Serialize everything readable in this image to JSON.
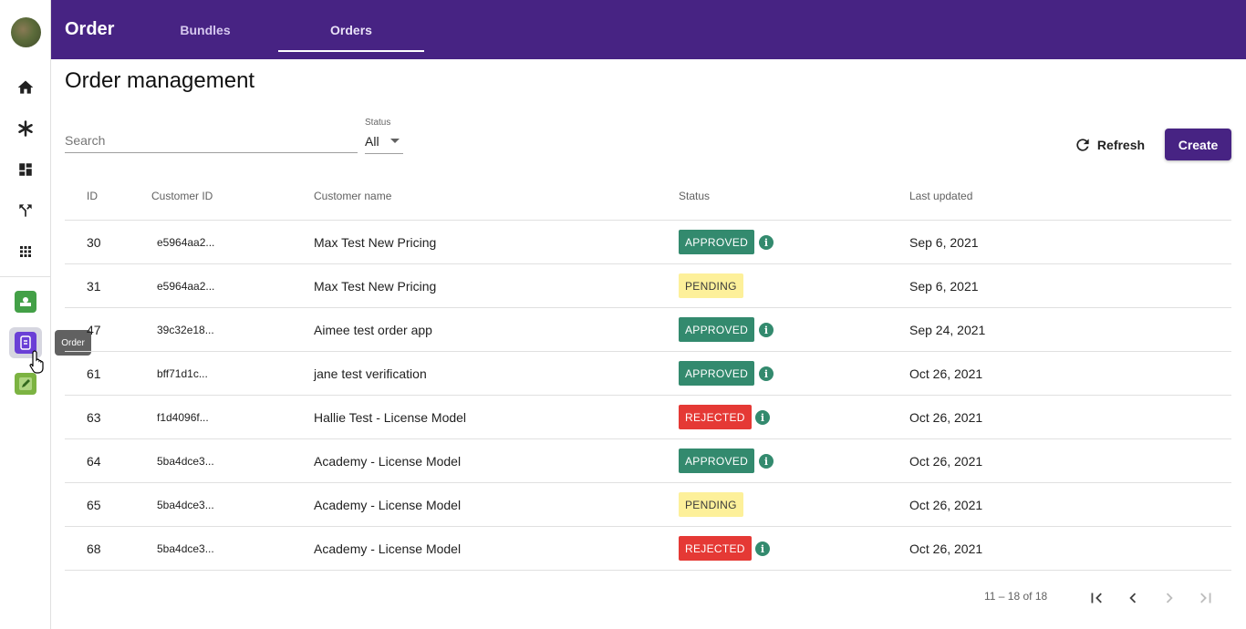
{
  "app": {
    "title": "Order",
    "tabs": [
      {
        "label": "Bundles",
        "active": false
      },
      {
        "label": "Orders",
        "active": true
      }
    ]
  },
  "sidebar": {
    "nav_icons": [
      "home-icon",
      "asterisk-icon",
      "dashboard-icon",
      "fork-icon",
      "apps-grid-icon"
    ],
    "apps": [
      {
        "name": "green-app-icon",
        "color": "#43a047"
      },
      {
        "name": "order-app-icon",
        "color": "#6a3fd6",
        "active": true
      },
      {
        "name": "edit-app-icon",
        "color": "#7cb342"
      }
    ],
    "tooltip": "Order"
  },
  "page": {
    "title": "Order management",
    "search_placeholder": "Search",
    "status_label": "Status",
    "status_value": "All",
    "refresh_label": "Refresh",
    "create_label": "Create"
  },
  "table": {
    "headers": [
      "ID",
      "Customer ID",
      "Customer name",
      "Status",
      "Last updated"
    ],
    "rows": [
      {
        "id": "30",
        "customer_id": "e5964aa2...",
        "name": "Max Test New Pricing",
        "status": "APPROVED",
        "info": true,
        "updated": "Sep 6, 2021"
      },
      {
        "id": "31",
        "customer_id": "e5964aa2...",
        "name": "Max Test New Pricing",
        "status": "PENDING",
        "info": false,
        "updated": "Sep 6, 2021"
      },
      {
        "id": "47",
        "customer_id": "39c32e18...",
        "name": "Aimee test order app",
        "status": "APPROVED",
        "info": true,
        "updated": "Sep 24, 2021"
      },
      {
        "id": "61",
        "customer_id": "bff71d1c...",
        "name": "jane test verification",
        "status": "APPROVED",
        "info": true,
        "updated": "Oct 26, 2021"
      },
      {
        "id": "63",
        "customer_id": "f1d4096f...",
        "name": "Hallie Test - License Model",
        "status": "REJECTED",
        "info": true,
        "updated": "Oct 26, 2021"
      },
      {
        "id": "64",
        "customer_id": "5ba4dce3...",
        "name": "Academy - License Model",
        "status": "APPROVED",
        "info": true,
        "updated": "Oct 26, 2021"
      },
      {
        "id": "65",
        "customer_id": "5ba4dce3...",
        "name": "Academy - License Model",
        "status": "PENDING",
        "info": false,
        "updated": "Oct 26, 2021"
      },
      {
        "id": "68",
        "customer_id": "5ba4dce3...",
        "name": "Academy - License Model",
        "status": "REJECTED",
        "info": true,
        "updated": "Oct 26, 2021"
      }
    ]
  },
  "pagination": {
    "range_text": "11 – 18 of 18"
  },
  "colors": {
    "brand": "#472383",
    "approved": "#338a6e",
    "pending": "#fdf09a",
    "rejected": "#e53935"
  }
}
